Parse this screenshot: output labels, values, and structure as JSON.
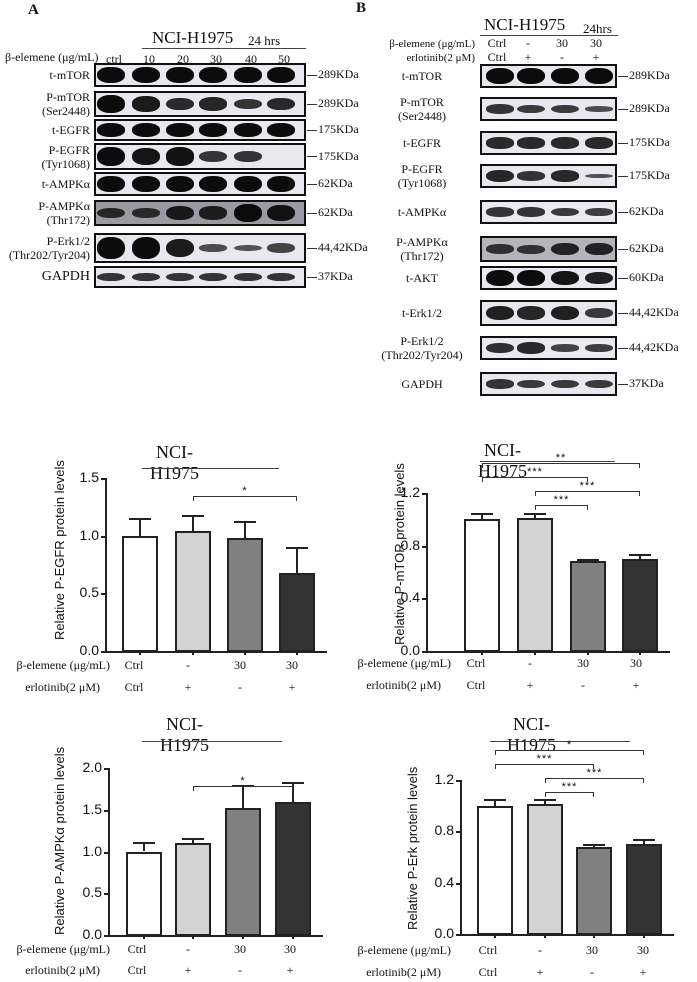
{
  "panelA": {
    "letter": "A",
    "cell_line": "NCI-H1975",
    "duration": "24 hrs",
    "treatment_label": "β-elemene (μg/mL)",
    "lanes": [
      "ctrl",
      "10",
      "20",
      "30",
      "40",
      "50"
    ],
    "rows": [
      {
        "label": "t-mTOR",
        "label2": "",
        "kda": "289KDa"
      },
      {
        "label": "P-mTOR",
        "label2": "(Ser2448)",
        "kda": "289KDa"
      },
      {
        "label": "t-EGFR",
        "label2": "",
        "kda": "175KDa"
      },
      {
        "label": "P-EGFR",
        "label2": "(Tyr1068)",
        "kda": "175KDa"
      },
      {
        "label": "t-AMPKα",
        "label2": "",
        "kda": "62KDa"
      },
      {
        "label": "P-AMPKα",
        "label2": "(Thr172)",
        "kda": "62KDa"
      },
      {
        "label": "P-Erk1/2",
        "label2": "(Thr202/Tyr204)",
        "kda": "44,42KDa"
      },
      {
        "label": "GAPDH",
        "label2": "",
        "kda": "37KDa"
      }
    ]
  },
  "panelB": {
    "letter": "B",
    "cell_line": "NCI-H1975",
    "duration": "24hrs",
    "treatment1_label": "β-elemene (μg/mL)",
    "treatment1_values": [
      "Ctrl",
      "-",
      "30",
      "30"
    ],
    "treatment2_label": "erlotinib(2 μM)",
    "treatment2_values": [
      "Ctrl",
      "+",
      "-",
      "+"
    ],
    "rows": [
      {
        "label": "t-mTOR",
        "label2": "",
        "kda": "289KDa"
      },
      {
        "label": "P-mTOR",
        "label2": "(Ser2448)",
        "kda": "289KDa"
      },
      {
        "label": "t-EGFR",
        "label2": "",
        "kda": "175KDa"
      },
      {
        "label": "P-EGFR",
        "label2": "(Tyr1068)",
        "kda": "175KDa"
      },
      {
        "label": "t-AMPKα",
        "label2": "",
        "kda": "62KDa"
      },
      {
        "label": "P-AMPKα",
        "label2": "(Thr172)",
        "kda": "62KDa"
      },
      {
        "label": "t-AKT",
        "label2": "",
        "kda": "60KDa"
      },
      {
        "label": "t-Erk1/2",
        "label2": "",
        "kda": "44,42KDa"
      },
      {
        "label": "P-Erk1/2",
        "label2": "(Thr202/Tyr204)",
        "kda": "44,42KDa"
      },
      {
        "label": "GAPDH",
        "label2": "",
        "kda": "37KDa"
      }
    ]
  },
  "chart_rows": {
    "row1_label": "β-elemene (μg/mL)",
    "row1_values": [
      "Ctrl",
      "-",
      "30",
      "30"
    ],
    "row2_label": "erlotinib(2 μM)",
    "row2_values": [
      "Ctrl",
      "+",
      "-",
      "+"
    ]
  },
  "chart_data": [
    {
      "type": "bar",
      "title": "NCI-H1975",
      "ylabel": "Relative P-EGFR protein levels",
      "xlabel": "",
      "categories": [
        "Ctrl/Ctrl",
        "-/+",
        "30/-",
        "30/+"
      ],
      "values": [
        1.0,
        1.04,
        0.98,
        0.68
      ],
      "errors": [
        0.15,
        0.14,
        0.15,
        0.22
      ],
      "colors": [
        "#ffffff",
        "#d3d3d3",
        "#808080",
        "#333333"
      ],
      "ylim": [
        0,
        1.5
      ],
      "yticks": [
        "0.0",
        "0.5",
        "1.0",
        "1.5"
      ],
      "significance": [
        {
          "from": 1,
          "to": 3,
          "label": "*"
        }
      ]
    },
    {
      "type": "bar",
      "title": "NCI-H1975",
      "ylabel": "Relative P-mTOR protein levels",
      "xlabel": "",
      "categories": [
        "Ctrl/Ctrl",
        "-/+",
        "30/-",
        "30/+"
      ],
      "values": [
        1.0,
        1.01,
        0.68,
        0.7
      ],
      "errors": [
        0.05,
        0.04,
        0.02,
        0.04
      ],
      "colors": [
        "#ffffff",
        "#d3d3d3",
        "#808080",
        "#333333"
      ],
      "ylim": [
        0,
        1.2
      ],
      "yticks": [
        "0.0",
        "0.4",
        "0.8",
        "1.2"
      ],
      "significance": [
        {
          "from": 0,
          "to": 3,
          "label": "**"
        },
        {
          "from": 0,
          "to": 2,
          "label": "***"
        },
        {
          "from": 1,
          "to": 3,
          "label": "***"
        },
        {
          "from": 1,
          "to": 2,
          "label": "***"
        }
      ]
    },
    {
      "type": "bar",
      "title": "NCI-H1975",
      "ylabel": "Relative P-AMPKα protein levels",
      "xlabel": "",
      "categories": [
        "Ctrl/Ctrl",
        "-/+",
        "30/-",
        "30/+"
      ],
      "values": [
        1.0,
        1.1,
        1.52,
        1.59
      ],
      "errors": [
        0.11,
        0.06,
        0.28,
        0.24
      ],
      "colors": [
        "#ffffff",
        "#d3d3d3",
        "#808080",
        "#333333"
      ],
      "ylim": [
        0,
        2.0
      ],
      "yticks": [
        "0.0",
        "0.5",
        "1.0",
        "1.5",
        "2.0"
      ],
      "significance": [
        {
          "from": 1,
          "to": 3,
          "label": "*"
        }
      ]
    },
    {
      "type": "bar",
      "title": "NCI-H1975",
      "ylabel": "Relative P-Erk protein levels",
      "xlabel": "",
      "categories": [
        "Ctrl/Ctrl",
        "-/+",
        "30/-",
        "30/+"
      ],
      "values": [
        1.0,
        1.01,
        0.68,
        0.7
      ],
      "errors": [
        0.05,
        0.04,
        0.02,
        0.04
      ],
      "colors": [
        "#ffffff",
        "#d3d3d3",
        "#808080",
        "#333333"
      ],
      "ylim": [
        0,
        1.2
      ],
      "yticks": [
        "0.0",
        "0.4",
        "0.8",
        "1.2"
      ],
      "significance": [
        {
          "from": 0,
          "to": 3,
          "label": "*"
        },
        {
          "from": 0,
          "to": 2,
          "label": "***"
        },
        {
          "from": 1,
          "to": 3,
          "label": "***"
        },
        {
          "from": 1,
          "to": 2,
          "label": "***"
        }
      ]
    }
  ]
}
